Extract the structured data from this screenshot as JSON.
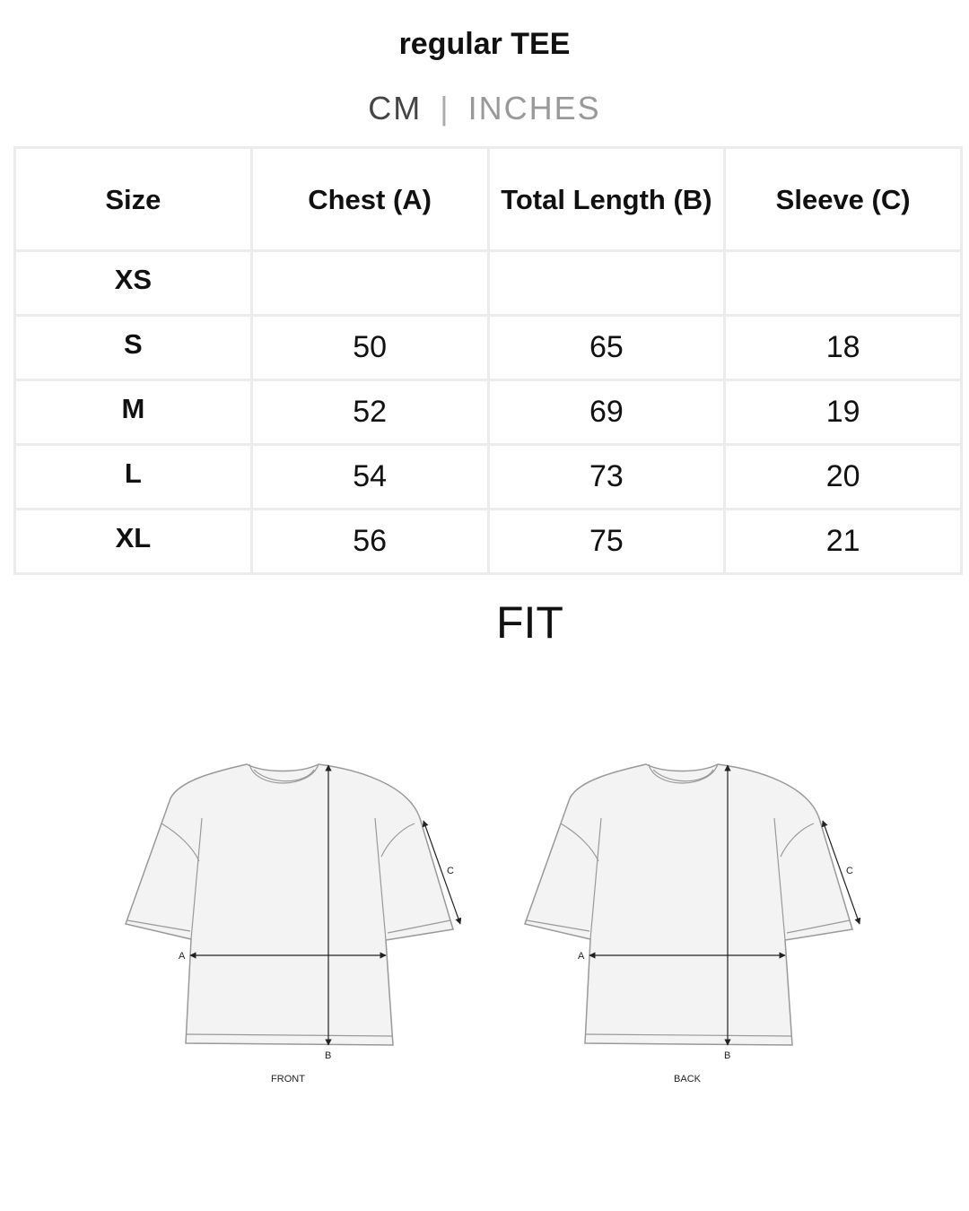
{
  "title": "regular TEE",
  "units": {
    "cm": "CM",
    "separator": "|",
    "inches": "INCHES",
    "selected": "CM"
  },
  "table": {
    "headers": [
      "Size",
      "Chest (A)",
      "Total Length (B)",
      "Sleeve (C)"
    ],
    "rows": [
      [
        "XS",
        "",
        "",
        ""
      ],
      [
        "S",
        "50",
        "65",
        "18"
      ],
      [
        "M",
        "52",
        "69",
        "19"
      ],
      [
        "L",
        "54",
        "73",
        "20"
      ],
      [
        "XL",
        "56",
        "75",
        "21"
      ]
    ]
  },
  "fit": {
    "heading": "FIT",
    "front_label": "FRONT",
    "back_label": "BACK",
    "marker_a": "A",
    "marker_b": "B",
    "marker_c": "C"
  }
}
